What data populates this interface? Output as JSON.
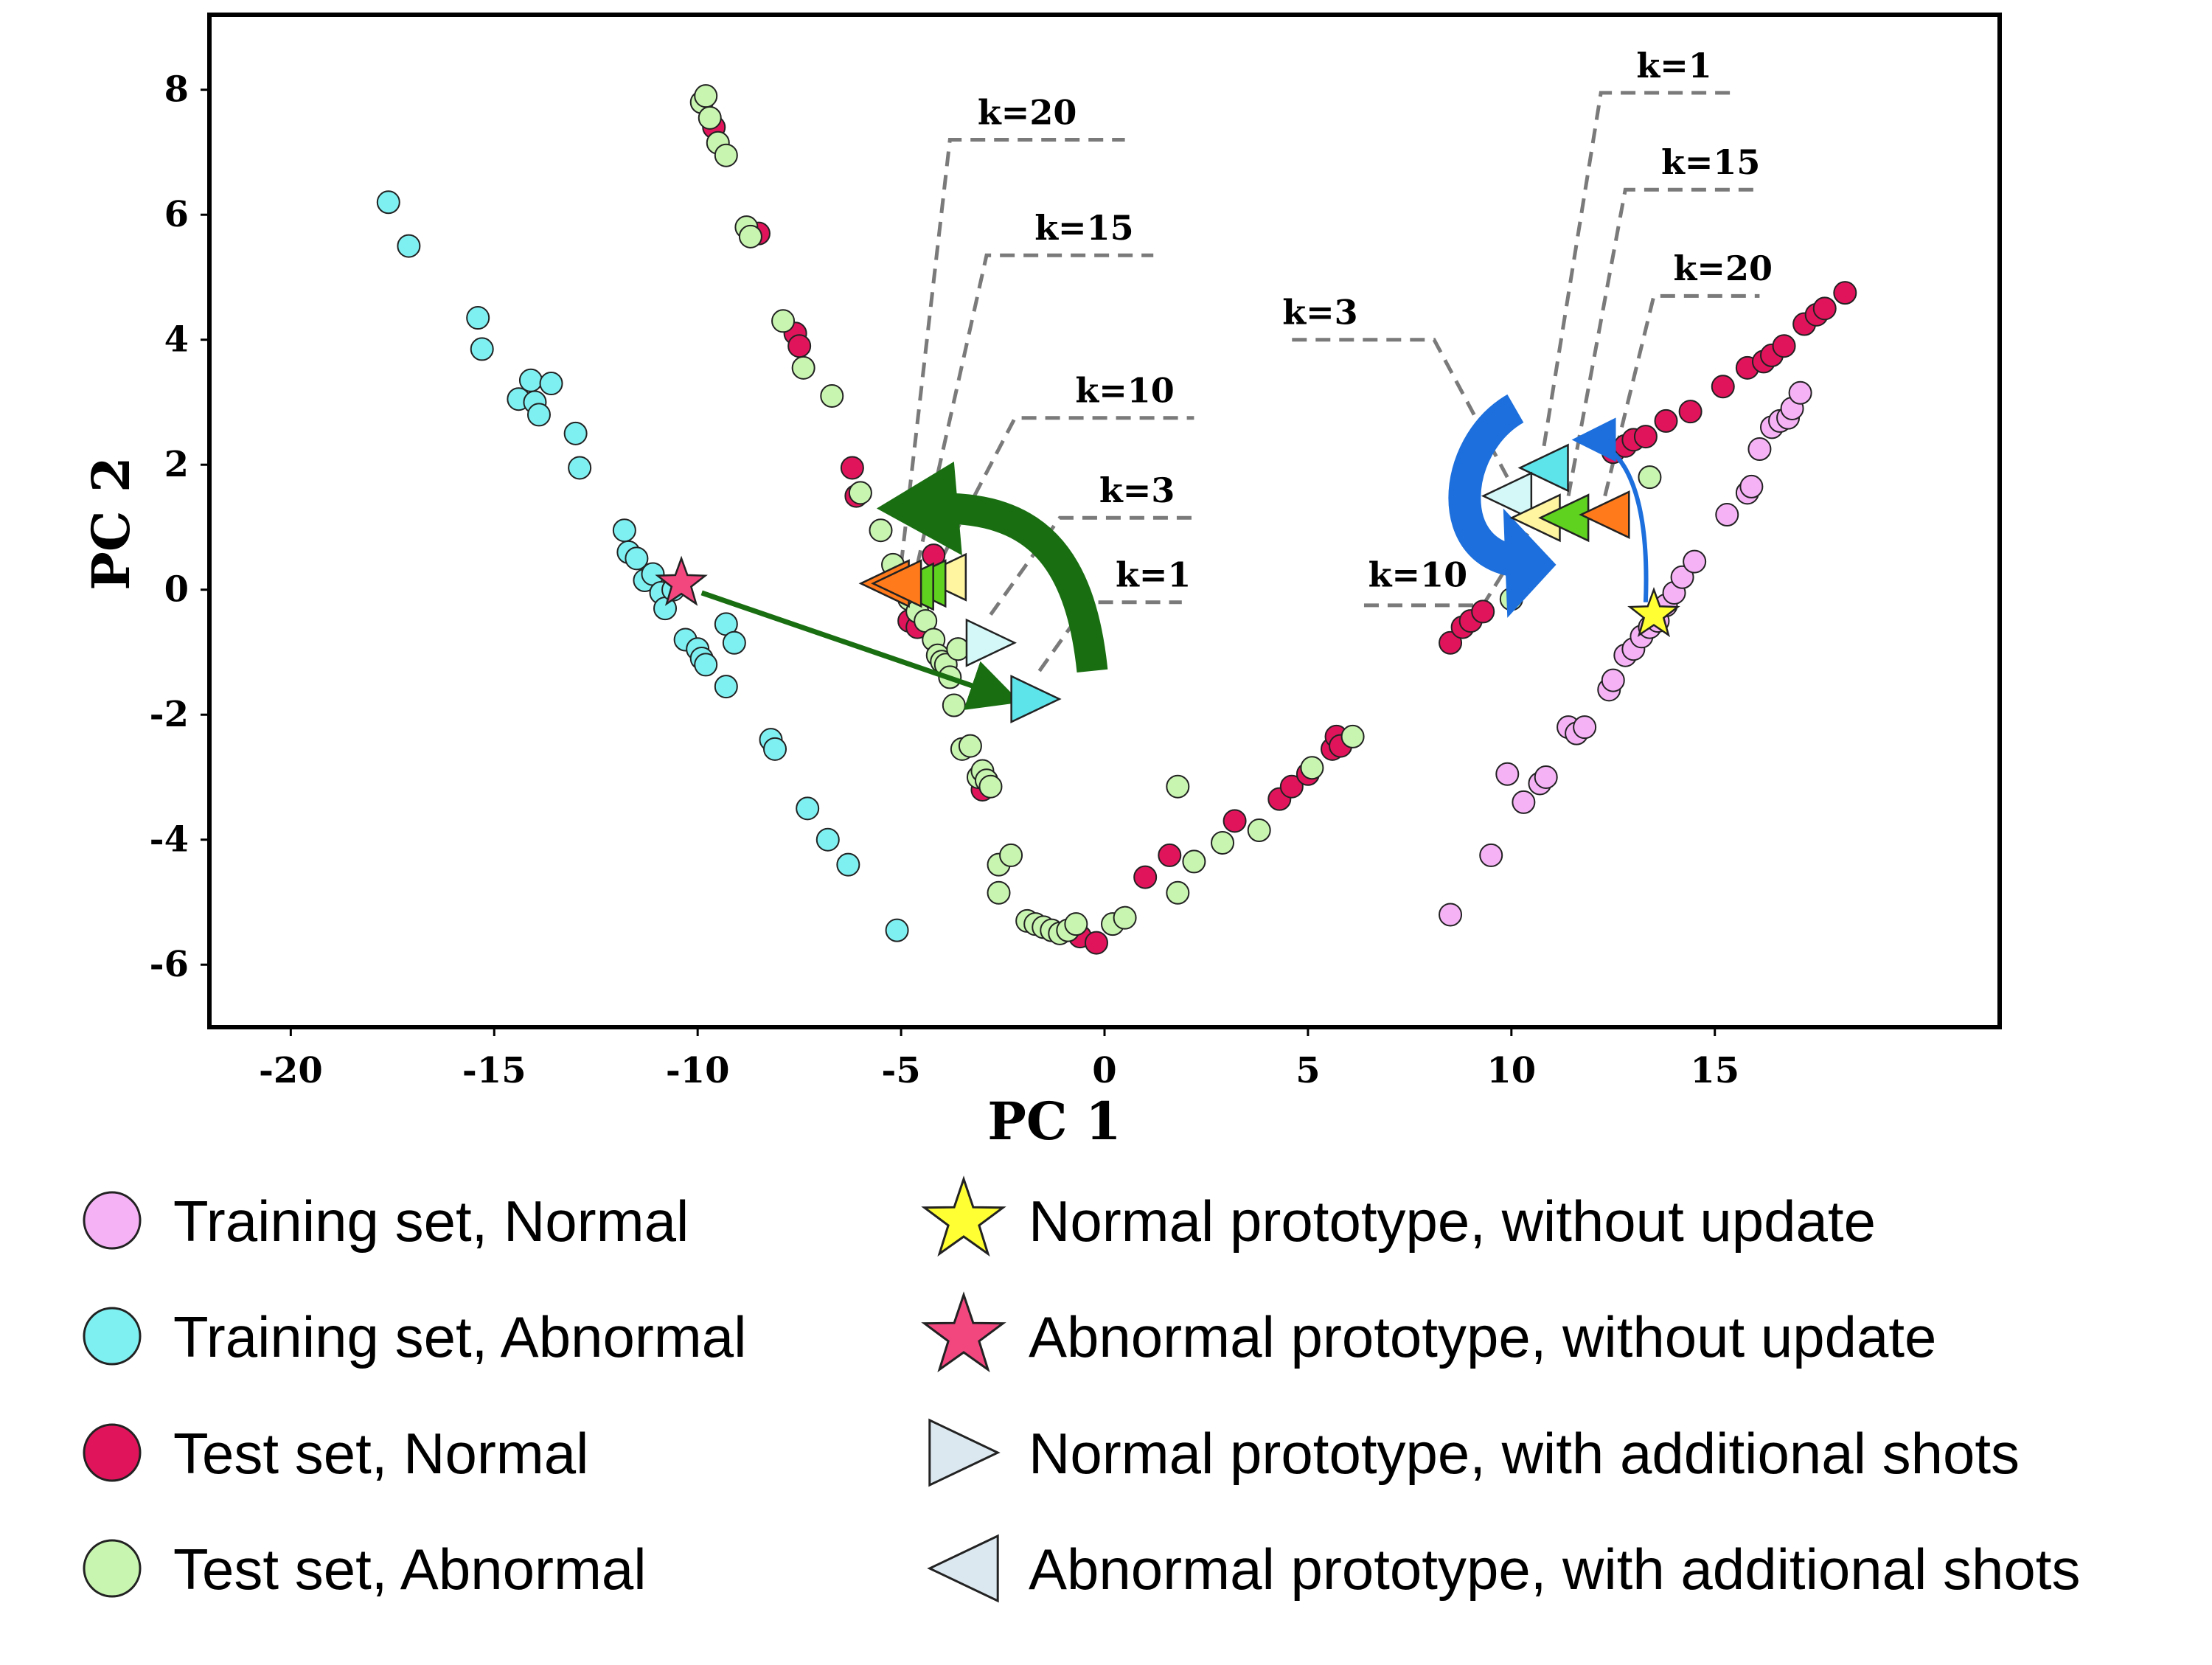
{
  "chart_data": {
    "type": "scatter",
    "title": "",
    "xlabel": "PC 1",
    "ylabel": "PC 2",
    "xlim": [
      -22,
      22
    ],
    "ylim": [
      -7,
      9.2
    ],
    "xticks": [
      -20,
      -15,
      -10,
      -5,
      0,
      5,
      10,
      15
    ],
    "yticks": [
      8,
      6,
      4,
      2,
      0,
      -2,
      -4,
      -6
    ],
    "grid": false,
    "legend_position": "bottom",
    "colors": {
      "train_normal": "#f5b3f5",
      "train_abnormal": "#7ff0f2",
      "test_normal": "#e0145a",
      "test_abnormal": "#c8f5b0",
      "star_normal": "#ffff33",
      "star_abnormal": "#f2467f",
      "green_arrow": "#1a6e12",
      "blue_arrow": "#1c6fdc",
      "leader": "#7a7a7a"
    },
    "series": [
      {
        "name": "Training set, Normal",
        "key": "train_normal",
        "points": [
          [
            8.5,
            -5.2
          ],
          [
            9.5,
            -4.25
          ],
          [
            9.9,
            -2.95
          ],
          [
            10.3,
            -3.4
          ],
          [
            10.7,
            -3.1
          ],
          [
            10.85,
            -3.0
          ],
          [
            11.4,
            -2.2
          ],
          [
            11.6,
            -2.3
          ],
          [
            11.8,
            -2.2
          ],
          [
            12.4,
            -1.6
          ],
          [
            12.5,
            -1.45
          ],
          [
            12.8,
            -1.05
          ],
          [
            13.0,
            -0.95
          ],
          [
            13.2,
            -0.75
          ],
          [
            13.4,
            -0.6
          ],
          [
            13.6,
            -0.5
          ],
          [
            13.8,
            -0.25
          ],
          [
            14.0,
            -0.05
          ],
          [
            14.2,
            0.2
          ],
          [
            14.5,
            0.45
          ],
          [
            15.3,
            1.2
          ],
          [
            15.8,
            1.55
          ],
          [
            15.9,
            1.65
          ],
          [
            16.1,
            2.25
          ],
          [
            16.4,
            2.6
          ],
          [
            16.6,
            2.7
          ],
          [
            16.8,
            2.75
          ],
          [
            16.9,
            2.9
          ],
          [
            17.1,
            3.15
          ]
        ]
      },
      {
        "name": "Training set, Abnormal",
        "key": "train_abnormal",
        "points": [
          [
            -17.6,
            6.2
          ],
          [
            -17.1,
            5.5
          ],
          [
            -15.4,
            4.35
          ],
          [
            -15.3,
            3.85
          ],
          [
            -14.4,
            3.05
          ],
          [
            -14.1,
            3.35
          ],
          [
            -14.0,
            3.0
          ],
          [
            -13.9,
            2.8
          ],
          [
            -13.6,
            3.3
          ],
          [
            -13.0,
            2.5
          ],
          [
            -12.9,
            1.95
          ],
          [
            -11.8,
            0.95
          ],
          [
            -11.7,
            0.6
          ],
          [
            -11.5,
            0.5
          ],
          [
            -11.3,
            0.15
          ],
          [
            -11.1,
            0.25
          ],
          [
            -10.9,
            -0.05
          ],
          [
            -10.8,
            -0.3
          ],
          [
            -10.6,
            0.0
          ],
          [
            -10.3,
            -0.8
          ],
          [
            -10.0,
            -0.95
          ],
          [
            -9.9,
            -1.1
          ],
          [
            -9.8,
            -1.2
          ],
          [
            -9.3,
            -0.55
          ],
          [
            -9.1,
            -0.85
          ],
          [
            -9.3,
            -1.55
          ],
          [
            -8.2,
            -2.4
          ],
          [
            -8.1,
            -2.55
          ],
          [
            -7.3,
            -3.5
          ],
          [
            -6.8,
            -4.0
          ],
          [
            -6.3,
            -4.4
          ],
          [
            -5.1,
            -5.45
          ]
        ]
      },
      {
        "name": "Test set, Normal",
        "key": "test_normal",
        "points": [
          [
            -9.6,
            7.4
          ],
          [
            -8.5,
            5.7
          ],
          [
            -7.6,
            4.1
          ],
          [
            -7.5,
            3.9
          ],
          [
            -6.2,
            1.95
          ],
          [
            -6.1,
            1.5
          ],
          [
            -4.8,
            -0.5
          ],
          [
            -4.6,
            -0.6
          ],
          [
            -3.0,
            -3.2
          ],
          [
            -0.6,
            -5.55
          ],
          [
            -0.2,
            -5.65
          ],
          [
            1.0,
            -4.6
          ],
          [
            1.6,
            -4.25
          ],
          [
            3.2,
            -3.7
          ],
          [
            4.3,
            -3.35
          ],
          [
            4.6,
            -3.15
          ],
          [
            5.0,
            -2.95
          ],
          [
            5.6,
            -2.55
          ],
          [
            5.7,
            -2.35
          ],
          [
            5.8,
            -2.5
          ],
          [
            8.5,
            -0.85
          ],
          [
            8.8,
            -0.6
          ],
          [
            9.0,
            -0.5
          ],
          [
            9.3,
            -0.35
          ],
          [
            12.5,
            2.2
          ],
          [
            12.8,
            2.3
          ],
          [
            13.0,
            2.4
          ],
          [
            13.3,
            2.45
          ],
          [
            13.8,
            2.7
          ],
          [
            14.4,
            2.85
          ],
          [
            15.2,
            3.25
          ],
          [
            15.8,
            3.55
          ],
          [
            16.2,
            3.65
          ],
          [
            16.4,
            3.75
          ],
          [
            16.7,
            3.9
          ],
          [
            17.2,
            4.25
          ],
          [
            17.5,
            4.4
          ],
          [
            17.7,
            4.5
          ],
          [
            18.2,
            4.75
          ],
          [
            -4.2,
            0.55
          ],
          [
            -3.6,
            -0.95
          ]
        ]
      },
      {
        "name": "Test set, Abnormal",
        "key": "test_abnormal",
        "points": [
          [
            -9.9,
            7.8
          ],
          [
            -9.8,
            7.9
          ],
          [
            -9.7,
            7.55
          ],
          [
            -9.5,
            7.15
          ],
          [
            -9.3,
            6.95
          ],
          [
            -8.8,
            5.8
          ],
          [
            -8.7,
            5.65
          ],
          [
            -7.9,
            4.3
          ],
          [
            -7.4,
            3.55
          ],
          [
            -6.7,
            3.1
          ],
          [
            -6.0,
            1.55
          ],
          [
            -5.5,
            0.95
          ],
          [
            -5.2,
            0.4
          ],
          [
            -5.0,
            0.05
          ],
          [
            -4.8,
            -0.15
          ],
          [
            -4.6,
            -0.35
          ],
          [
            -4.4,
            -0.5
          ],
          [
            -4.2,
            -0.8
          ],
          [
            -4.1,
            -1.05
          ],
          [
            -4.0,
            -1.15
          ],
          [
            -3.9,
            -1.2
          ],
          [
            -3.8,
            -1.4
          ],
          [
            -3.7,
            -1.85
          ],
          [
            -3.6,
            -0.95
          ],
          [
            -3.5,
            -2.55
          ],
          [
            -3.3,
            -2.5
          ],
          [
            -3.1,
            -3.0
          ],
          [
            -3.0,
            -2.9
          ],
          [
            -2.9,
            -3.05
          ],
          [
            -2.8,
            -3.15
          ],
          [
            -2.6,
            -4.4
          ],
          [
            -2.3,
            -4.25
          ],
          [
            -1.9,
            -5.3
          ],
          [
            -1.7,
            -5.35
          ],
          [
            -1.5,
            -5.4
          ],
          [
            -1.3,
            -5.45
          ],
          [
            -1.1,
            -5.5
          ],
          [
            -0.9,
            -5.45
          ],
          [
            -0.7,
            -5.35
          ],
          [
            0.2,
            -5.35
          ],
          [
            0.5,
            -5.25
          ],
          [
            1.8,
            -4.85
          ],
          [
            2.2,
            -4.35
          ],
          [
            2.9,
            -4.05
          ],
          [
            3.8,
            -3.85
          ],
          [
            1.8,
            -3.15
          ],
          [
            5.1,
            -2.85
          ],
          [
            6.1,
            -2.35
          ],
          [
            10.0,
            -0.15
          ],
          [
            13.4,
            1.8
          ],
          [
            -2.6,
            -4.85
          ]
        ]
      }
    ],
    "prototypes_without_update": [
      {
        "name": "Normal prototype, without update",
        "key": "star_normal",
        "x": 13.5,
        "y": -0.4
      },
      {
        "name": "Abnormal prototype, without update",
        "key": "star_abnormal",
        "x": -10.4,
        "y": 0.1
      }
    ],
    "prototypes_with_shots": {
      "legend_normal": "Normal prototype, with additional shots",
      "legend_abnormal": "Abnormal prototype, with additional shots",
      "abnormal_triangles": [
        {
          "k": "k=1",
          "x": -5.4,
          "y": 0.1,
          "color": "#ff7a1a"
        },
        {
          "k": "k=3",
          "x": -4.0,
          "y": 0.2,
          "color": "#fff4a0"
        },
        {
          "k": "k=10",
          "x": -4.5,
          "y": 0.1,
          "color": "#5ed21e"
        },
        {
          "k": "k=15",
          "x": -4.8,
          "y": 0.05,
          "color": "#5ed21e"
        },
        {
          "k": "k=20",
          "x": -5.1,
          "y": 0.1,
          "color": "#ff7a1a"
        },
        {
          "k": "k=1",
          "x": 10.8,
          "y": 1.95,
          "color": "#5de3ea"
        },
        {
          "k": "k=3",
          "x": 9.9,
          "y": 1.5,
          "color": "#d4f8f8"
        },
        {
          "k": "k=10",
          "x": 10.6,
          "y": 1.15,
          "color": "#fff4a0"
        },
        {
          "k": "k=15",
          "x": 11.3,
          "y": 1.15,
          "color": "#5ed21e"
        },
        {
          "k": "k=20",
          "x": 12.3,
          "y": 1.2,
          "color": "#ff7a1a"
        }
      ],
      "normal_triangles": [
        {
          "k": "k=1",
          "x": -1.7,
          "y": -1.75,
          "color": "#5de3ea"
        },
        {
          "k": "k=3",
          "x": -2.8,
          "y": -0.85,
          "color": "#d4f8f8"
        }
      ]
    },
    "annotations": [
      {
        "text": "k=20",
        "side": "left-cluster"
      },
      {
        "text": "k=15",
        "side": "left-cluster"
      },
      {
        "text": "k=10",
        "side": "left-cluster"
      },
      {
        "text": "k=3",
        "side": "left-cluster"
      },
      {
        "text": "k=1",
        "side": "left-cluster"
      },
      {
        "text": "k=1",
        "side": "right-cluster"
      },
      {
        "text": "k=15",
        "side": "right-cluster"
      },
      {
        "text": "k=20",
        "side": "right-cluster"
      },
      {
        "text": "k=3",
        "side": "right-cluster"
      },
      {
        "text": "k=10",
        "side": "right-cluster"
      }
    ]
  }
}
